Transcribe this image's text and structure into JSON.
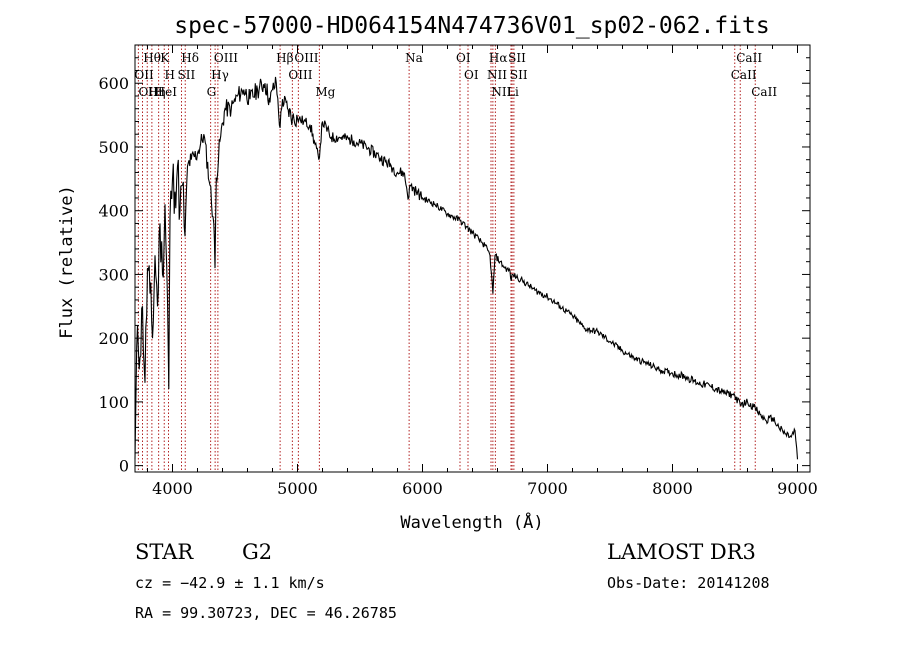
{
  "chart_data": {
    "type": "line",
    "title": "spec-57000-HD064154N474736V01_sp02-062.fits",
    "xlabel": "Wavelength (Å)",
    "ylabel": "Flux (relative)",
    "xlim": [
      3700,
      9100
    ],
    "ylim": [
      -10,
      660
    ],
    "xticks": [
      4000,
      5000,
      6000,
      7000,
      8000,
      9000
    ],
    "yticks": [
      0,
      100,
      200,
      300,
      400,
      500,
      600
    ],
    "series": [
      {
        "name": "spectrum",
        "x": [
          3700,
          3720,
          3740,
          3760,
          3780,
          3800,
          3820,
          3840,
          3860,
          3880,
          3900,
          3920,
          3940,
          3960,
          3970,
          3980,
          4000,
          4020,
          4040,
          4060,
          4080,
          4100,
          4120,
          4150,
          4200,
          4250,
          4300,
          4330,
          4340,
          4350,
          4380,
          4420,
          4470,
          4520,
          4570,
          4620,
          4680,
          4740,
          4780,
          4800,
          4830,
          4861,
          4880,
          4920,
          4960,
          5000,
          5050,
          5100,
          5170,
          5200,
          5270,
          5350,
          5450,
          5550,
          5650,
          5750,
          5800,
          5850,
          5890,
          5900,
          5950,
          6000,
          6100,
          6200,
          6300,
          6350,
          6400,
          6450,
          6500,
          6540,
          6563,
          6580,
          6620,
          6660,
          6700,
          6710,
          6720,
          6800,
          6900,
          7000,
          7100,
          7200,
          7300,
          7400,
          7500,
          7600,
          7700,
          7800,
          7900,
          8000,
          8100,
          8200,
          8300,
          8400,
          8498,
          8542,
          8600,
          8662,
          8700,
          8750,
          8800,
          8850,
          8900,
          8950,
          8980,
          9000
        ],
        "values": [
          10,
          220,
          170,
          250,
          130,
          310,
          270,
          200,
          330,
          250,
          380,
          300,
          410,
          260,
          120,
          390,
          450,
          430,
          470,
          400,
          440,
          360,
          470,
          480,
          490,
          520,
          440,
          380,
          310,
          450,
          510,
          560,
          560,
          580,
          590,
          575,
          590,
          600,
          570,
          590,
          600,
          530,
          575,
          560,
          545,
          545,
          540,
          535,
          480,
          540,
          515,
          515,
          510,
          500,
          485,
          470,
          460,
          460,
          420,
          440,
          430,
          420,
          410,
          395,
          385,
          375,
          365,
          355,
          345,
          330,
          270,
          330,
          320,
          310,
          305,
          290,
          300,
          290,
          275,
          265,
          250,
          235,
          215,
          210,
          195,
          180,
          168,
          160,
          150,
          145,
          140,
          130,
          125,
          115,
          110,
          95,
          100,
          90,
          80,
          70,
          75,
          60,
          50,
          45,
          55,
          10
        ]
      }
    ],
    "lines": [
      {
        "label": "Hθ",
        "x": 3798
      },
      {
        "label": "OII",
        "x": 3727
      },
      {
        "label": "OIII",
        "x": 3760
      },
      {
        "label": "K",
        "x": 3934
      },
      {
        "label": "HeI",
        "x": 3889
      },
      {
        "label": "Hη",
        "x": 3835
      },
      {
        "label": "H",
        "x": 3968
      },
      {
        "label": "Hδ",
        "x": 4102
      },
      {
        "label": "SII",
        "x": 4072
      },
      {
        "label": "OIII",
        "x": 4363
      },
      {
        "label": "Hγ",
        "x": 4341
      },
      {
        "label": "G",
        "x": 4305
      },
      {
        "label": "Hβ",
        "x": 4861
      },
      {
        "label": "OIII",
        "x": 5007
      },
      {
        "label": "OIII",
        "x": 4959
      },
      {
        "label": "Mg",
        "x": 5175
      },
      {
        "label": "Na",
        "x": 5893
      },
      {
        "label": "OI",
        "x": 6300
      },
      {
        "label": "OI",
        "x": 6364
      },
      {
        "label": "Hα",
        "x": 6563
      },
      {
        "label": "NII",
        "x": 6548
      },
      {
        "label": "NII",
        "x": 6583
      },
      {
        "label": "SII",
        "x": 6717
      },
      {
        "label": "Li",
        "x": 6708
      },
      {
        "label": "SII",
        "x": 6731
      },
      {
        "label": "CaII",
        "x": 8542
      },
      {
        "label": "CaII",
        "x": 8498
      },
      {
        "label": "CaII",
        "x": 8662
      }
    ]
  },
  "info": {
    "object_class": "STAR",
    "subclass": "G2",
    "survey": "LAMOST DR3",
    "cz": "cz = −42.9 ± 1.1 km/s",
    "obs_date": "Obs-Date: 20141208",
    "coords": "RA =  99.30723, DEC =  46.26785"
  }
}
